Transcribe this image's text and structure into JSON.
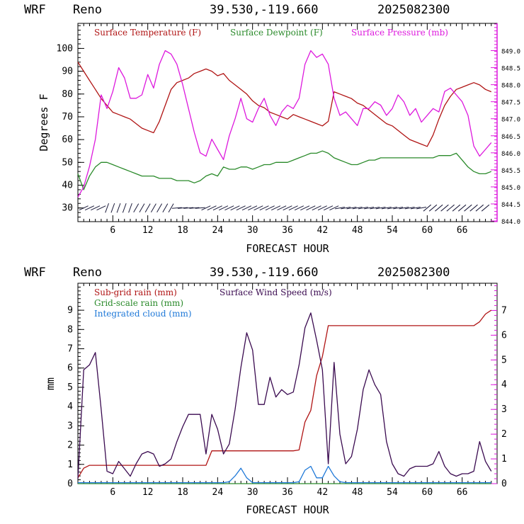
{
  "header": {
    "model": "WRF",
    "location": "Reno",
    "coords": "39.530,-119.660",
    "init": "2025082300"
  },
  "chart_data": [
    {
      "type": "line",
      "x": [
        0,
        1,
        2,
        3,
        4,
        5,
        6,
        7,
        8,
        9,
        10,
        11,
        12,
        13,
        14,
        15,
        16,
        17,
        18,
        19,
        20,
        21,
        22,
        23,
        24,
        25,
        26,
        27,
        28,
        29,
        30,
        31,
        32,
        33,
        34,
        35,
        36,
        37,
        38,
        39,
        40,
        41,
        42,
        43,
        44,
        45,
        46,
        47,
        48,
        49,
        50,
        51,
        52,
        53,
        54,
        55,
        56,
        57,
        58,
        59,
        60,
        61,
        62,
        63,
        64,
        65,
        66,
        67,
        68,
        69,
        70,
        71
      ],
      "xlabel": "FORECAST HOUR",
      "xticks": [
        6,
        12,
        18,
        24,
        30,
        36,
        42,
        48,
        54,
        60,
        66
      ],
      "xlim": [
        0,
        72
      ],
      "ylabel": "Degrees F",
      "ylim": [
        24,
        111
      ],
      "yticks": [
        30,
        40,
        50,
        60,
        70,
        80,
        90,
        100
      ],
      "y2lim": [
        843.98,
        849.8
      ],
      "y2ticks": [
        "844.0",
        "844.5",
        "845.0",
        "845.5",
        "846.0",
        "846.5",
        "847.0",
        "847.5",
        "848.0",
        "848.5",
        "849.0"
      ],
      "series": [
        {
          "name": "Surface Temperature (F)",
          "color": "#b01414",
          "axis": "left",
          "values": [
            94,
            90,
            86,
            82,
            78,
            75,
            72,
            71,
            70,
            69,
            67,
            65,
            64,
            63,
            68,
            75,
            82,
            85,
            86,
            87,
            89,
            90,
            91,
            90,
            88,
            89,
            86,
            84,
            82,
            80,
            77,
            75,
            74,
            72,
            71,
            70,
            69,
            71,
            70,
            69,
            68,
            67,
            66,
            68,
            81,
            80,
            79,
            78,
            76,
            75,
            73,
            71,
            69,
            67,
            66,
            64,
            62,
            60,
            59,
            58,
            57,
            62,
            69,
            75,
            79,
            82,
            83,
            84,
            85,
            84,
            82,
            81
          ]
        },
        {
          "name": "Surface Dewpoint (F)",
          "color": "#2a8a2a",
          "axis": "left",
          "values": [
            45,
            38,
            44,
            48,
            50,
            50,
            49,
            48,
            47,
            46,
            45,
            44,
            44,
            44,
            43,
            43,
            43,
            42,
            42,
            42,
            41,
            42,
            44,
            45,
            44,
            48,
            47,
            47,
            48,
            48,
            47,
            48,
            49,
            49,
            50,
            50,
            50,
            51,
            52,
            53,
            54,
            54,
            55,
            54,
            52,
            51,
            50,
            49,
            49,
            50,
            51,
            51,
            52,
            52,
            52,
            52,
            52,
            52,
            52,
            52,
            52,
            52,
            53,
            53,
            53,
            54,
            51,
            48,
            46,
            45,
            45,
            46
          ]
        },
        {
          "name": "Surface Pressure (mb)",
          "color": "#dd18dd",
          "axis": "right",
          "values": [
            844.7,
            845.0,
            845.6,
            846.4,
            847.7,
            847.3,
            847.8,
            848.5,
            848.2,
            847.6,
            847.6,
            847.7,
            848.3,
            847.9,
            848.6,
            849.0,
            848.9,
            848.6,
            848.0,
            847.3,
            846.6,
            846.0,
            845.9,
            846.4,
            846.1,
            845.8,
            846.5,
            847.0,
            847.6,
            847.0,
            846.9,
            847.3,
            847.6,
            847.1,
            846.8,
            847.2,
            847.4,
            847.3,
            847.6,
            848.6,
            849.0,
            848.8,
            848.9,
            848.6,
            847.6,
            847.1,
            847.2,
            847.0,
            846.8,
            847.3,
            847.3,
            847.5,
            847.4,
            847.1,
            847.3,
            847.7,
            847.5,
            847.1,
            847.3,
            846.9,
            847.1,
            847.3,
            847.2,
            847.8,
            847.9,
            847.7,
            847.5,
            847.1,
            846.2,
            845.9,
            846.1,
            846.3
          ]
        }
      ],
      "wind_barbs": true
    },
    {
      "type": "line",
      "x": [
        0,
        1,
        2,
        3,
        4,
        5,
        6,
        7,
        8,
        9,
        10,
        11,
        12,
        13,
        14,
        15,
        16,
        17,
        18,
        19,
        20,
        21,
        22,
        23,
        24,
        25,
        26,
        27,
        28,
        29,
        30,
        31,
        32,
        33,
        34,
        35,
        36,
        37,
        38,
        39,
        40,
        41,
        42,
        43,
        44,
        45,
        46,
        47,
        48,
        49,
        50,
        51,
        52,
        53,
        54,
        55,
        56,
        57,
        58,
        59,
        60,
        61,
        62,
        63,
        64,
        65,
        66,
        67,
        68,
        69,
        70,
        71
      ],
      "xlabel": "FORECAST HOUR",
      "xticks": [
        6,
        12,
        18,
        24,
        30,
        36,
        42,
        48,
        54,
        60,
        66
      ],
      "xlim": [
        0,
        72
      ],
      "ylabel": "mm",
      "ylim": [
        0,
        10.4
      ],
      "yticks": [
        0,
        1,
        2,
        3,
        4,
        5,
        6,
        7,
        8,
        9
      ],
      "y2lim": [
        0,
        8.1
      ],
      "y2ticks": [
        0,
        1,
        2,
        3,
        4,
        5,
        6,
        7
      ],
      "series": [
        {
          "name": "Sub-grid rain (mm)",
          "color": "#b01414",
          "axis": "left",
          "values": [
            0.3,
            0.8,
            0.95,
            0.95,
            0.95,
            0.95,
            0.95,
            0.95,
            0.95,
            0.95,
            0.95,
            0.95,
            0.95,
            0.95,
            0.95,
            0.95,
            0.95,
            0.95,
            0.95,
            0.95,
            0.95,
            0.95,
            0.95,
            1.7,
            1.7,
            1.7,
            1.7,
            1.7,
            1.7,
            1.7,
            1.7,
            1.7,
            1.7,
            1.7,
            1.7,
            1.7,
            1.7,
            1.7,
            1.75,
            3.2,
            3.8,
            5.6,
            6.6,
            8.2,
            8.2,
            8.2,
            8.2,
            8.2,
            8.2,
            8.2,
            8.2,
            8.2,
            8.2,
            8.2,
            8.2,
            8.2,
            8.2,
            8.2,
            8.2,
            8.2,
            8.2,
            8.2,
            8.2,
            8.2,
            8.2,
            8.2,
            8.2,
            8.2,
            8.2,
            8.4,
            8.8,
            9.0
          ]
        },
        {
          "name": "Grid-scale rain (mm)",
          "color": "#2a8a2a",
          "axis": "left",
          "values": [
            0,
            0,
            0,
            0,
            0,
            0,
            0,
            0,
            0,
            0,
            0,
            0,
            0,
            0,
            0,
            0,
            0,
            0,
            0,
            0,
            0,
            0,
            0,
            0,
            0,
            0,
            0,
            0,
            0,
            0,
            0,
            0,
            0,
            0,
            0,
            0,
            0,
            0,
            0,
            0,
            0,
            0,
            0,
            0,
            0,
            0,
            0,
            0,
            0,
            0,
            0,
            0,
            0,
            0,
            0,
            0,
            0,
            0,
            0,
            0,
            0,
            0,
            0,
            0,
            0,
            0,
            0,
            0,
            0,
            0,
            0,
            0
          ]
        },
        {
          "name": "Integrated cloud (mm)",
          "color": "#1e78d8",
          "axis": "left",
          "values": [
            0.05,
            0.05,
            0.05,
            0.05,
            0.05,
            0.05,
            0.05,
            0.05,
            0.05,
            0.05,
            0.05,
            0.05,
            0.05,
            0.05,
            0.05,
            0.05,
            0.05,
            0.05,
            0.05,
            0.05,
            0.05,
            0.05,
            0.05,
            0.05,
            0.05,
            0.05,
            0.1,
            0.4,
            0.8,
            0.3,
            0.05,
            0.05,
            0.05,
            0.05,
            0.05,
            0.05,
            0.05,
            0.05,
            0.1,
            0.7,
            0.9,
            0.3,
            0.3,
            0.9,
            0.4,
            0.1,
            0.05,
            0.05,
            0.05,
            0.05,
            0.05,
            0.05,
            0.05,
            0.05,
            0.05,
            0.05,
            0.05,
            0.05,
            0.05,
            0.05,
            0.05,
            0.05,
            0.05,
            0.05,
            0.05,
            0.05,
            0.05,
            0.05,
            0.05,
            0.05,
            0.05,
            0.05
          ]
        },
        {
          "name": "Surface Wind Speed (m/s)",
          "color": "#3a0a50",
          "axis": "right",
          "values": [
            0.2,
            4.6,
            4.8,
            5.3,
            3.0,
            0.5,
            0.4,
            0.9,
            0.6,
            0.3,
            0.8,
            1.2,
            1.3,
            1.2,
            0.7,
            0.8,
            1.0,
            1.7,
            2.3,
            2.8,
            2.8,
            2.8,
            1.2,
            2.8,
            2.2,
            1.2,
            1.6,
            3.0,
            4.7,
            6.1,
            5.4,
            3.2,
            3.2,
            4.3,
            3.5,
            3.8,
            3.6,
            3.7,
            4.8,
            6.3,
            6.9,
            5.8,
            4.6,
            0.8,
            4.9,
            2.0,
            0.8,
            1.1,
            2.2,
            3.8,
            4.6,
            4.0,
            3.6,
            1.7,
            0.8,
            0.4,
            0.3,
            0.6,
            0.7,
            0.7,
            0.7,
            0.8,
            1.3,
            0.7,
            0.4,
            0.3,
            0.4,
            0.4,
            0.5,
            1.7,
            0.9,
            0.5
          ]
        }
      ]
    }
  ]
}
